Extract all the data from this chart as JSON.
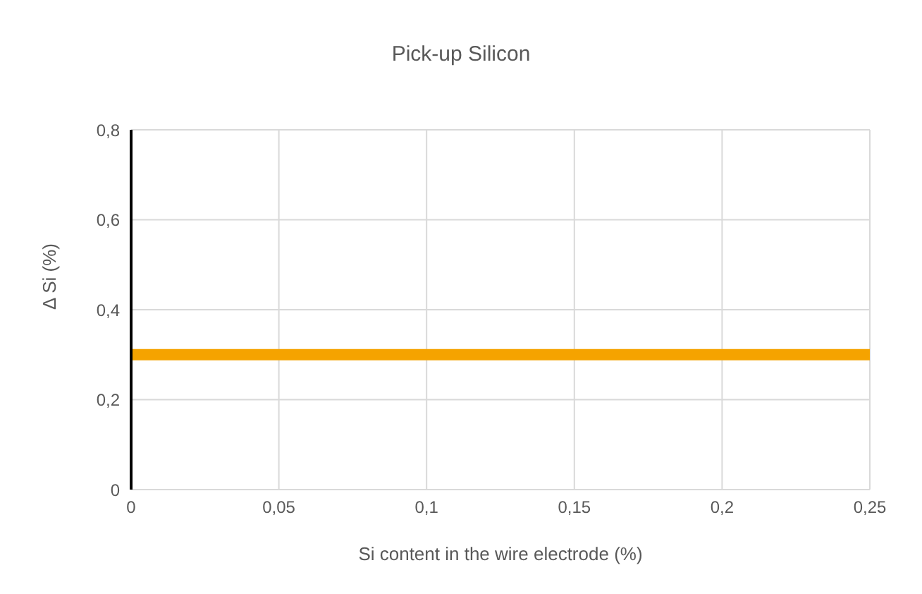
{
  "chart_data": {
    "type": "line",
    "title": "Pick-up Silicon",
    "xlabel": "Si content in the wire electrode (%)",
    "ylabel": "Δ Si (%)",
    "x": [
      0,
      0.25
    ],
    "series": [
      {
        "color": "#f5a300",
        "values": [
          0.3,
          0.3
        ]
      }
    ],
    "xlim": [
      0,
      0.25
    ],
    "xticks": [
      0,
      {
        "value": 0.05,
        "label": "0,05"
      },
      {
        "value": 0.1,
        "label": "0,1"
      },
      {
        "value": 0.15,
        "label": "0,15"
      },
      {
        "value": 0.2,
        "label": "0,2"
      },
      {
        "value": 0.25,
        "label": "0,25"
      }
    ],
    "ylim": [
      0,
      0.8
    ],
    "yticks": [
      0,
      {
        "value": 0.2,
        "label": "0,2"
      },
      {
        "value": 0.4,
        "label": "0,4"
      },
      {
        "value": 0.6,
        "label": "0,6"
      },
      {
        "value": 0.8,
        "label": "0,8"
      }
    ],
    "grid": true,
    "marker": "none",
    "line_style": "solid"
  }
}
